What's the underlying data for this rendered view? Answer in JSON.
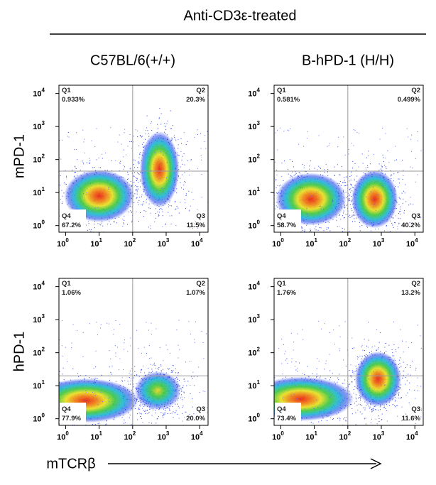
{
  "header": {
    "title": "Anti-CD3ε-treated"
  },
  "columns": [
    "C57BL/6(+/+)",
    "B-hPD-1 (H/H)"
  ],
  "rows": [
    "mPD-1",
    "hPD-1"
  ],
  "x_axis_label": "mTCRβ",
  "axis": {
    "ticks": [
      {
        "value": 1,
        "label": "10",
        "exponent": "0"
      },
      {
        "value": 10,
        "label": "10",
        "exponent": "1"
      },
      {
        "value": 100,
        "label": "10",
        "exponent": "2"
      },
      {
        "value": 1000,
        "label": "10",
        "exponent": "3"
      },
      {
        "value": 10000,
        "label": "10",
        "exponent": "4"
      }
    ]
  },
  "panels": [
    {
      "quadrants": [
        {
          "name": "Q1",
          "percent": "0.933%"
        },
        {
          "name": "Q2",
          "percent": "20.3%"
        },
        {
          "name": "Q3",
          "percent": "11.5%"
        },
        {
          "name": "Q4",
          "percent": "67.2%"
        }
      ]
    },
    {
      "quadrants": [
        {
          "name": "Q1",
          "percent": "0.581%"
        },
        {
          "name": "Q2",
          "percent": "0.499%"
        },
        {
          "name": "Q3",
          "percent": "40.2%"
        },
        {
          "name": "Q4",
          "percent": "58.7%"
        }
      ]
    },
    {
      "quadrants": [
        {
          "name": "Q1",
          "percent": "1.06%"
        },
        {
          "name": "Q2",
          "percent": "1.07%"
        },
        {
          "name": "Q3",
          "percent": "20.0%"
        },
        {
          "name": "Q4",
          "percent": "77.9%"
        }
      ]
    },
    {
      "quadrants": [
        {
          "name": "Q1",
          "percent": "1.76%"
        },
        {
          "name": "Q2",
          "percent": "13.2%"
        },
        {
          "name": "Q3",
          "percent": "11.6%"
        },
        {
          "name": "Q4",
          "percent": "73.4%"
        }
      ]
    }
  ]
}
